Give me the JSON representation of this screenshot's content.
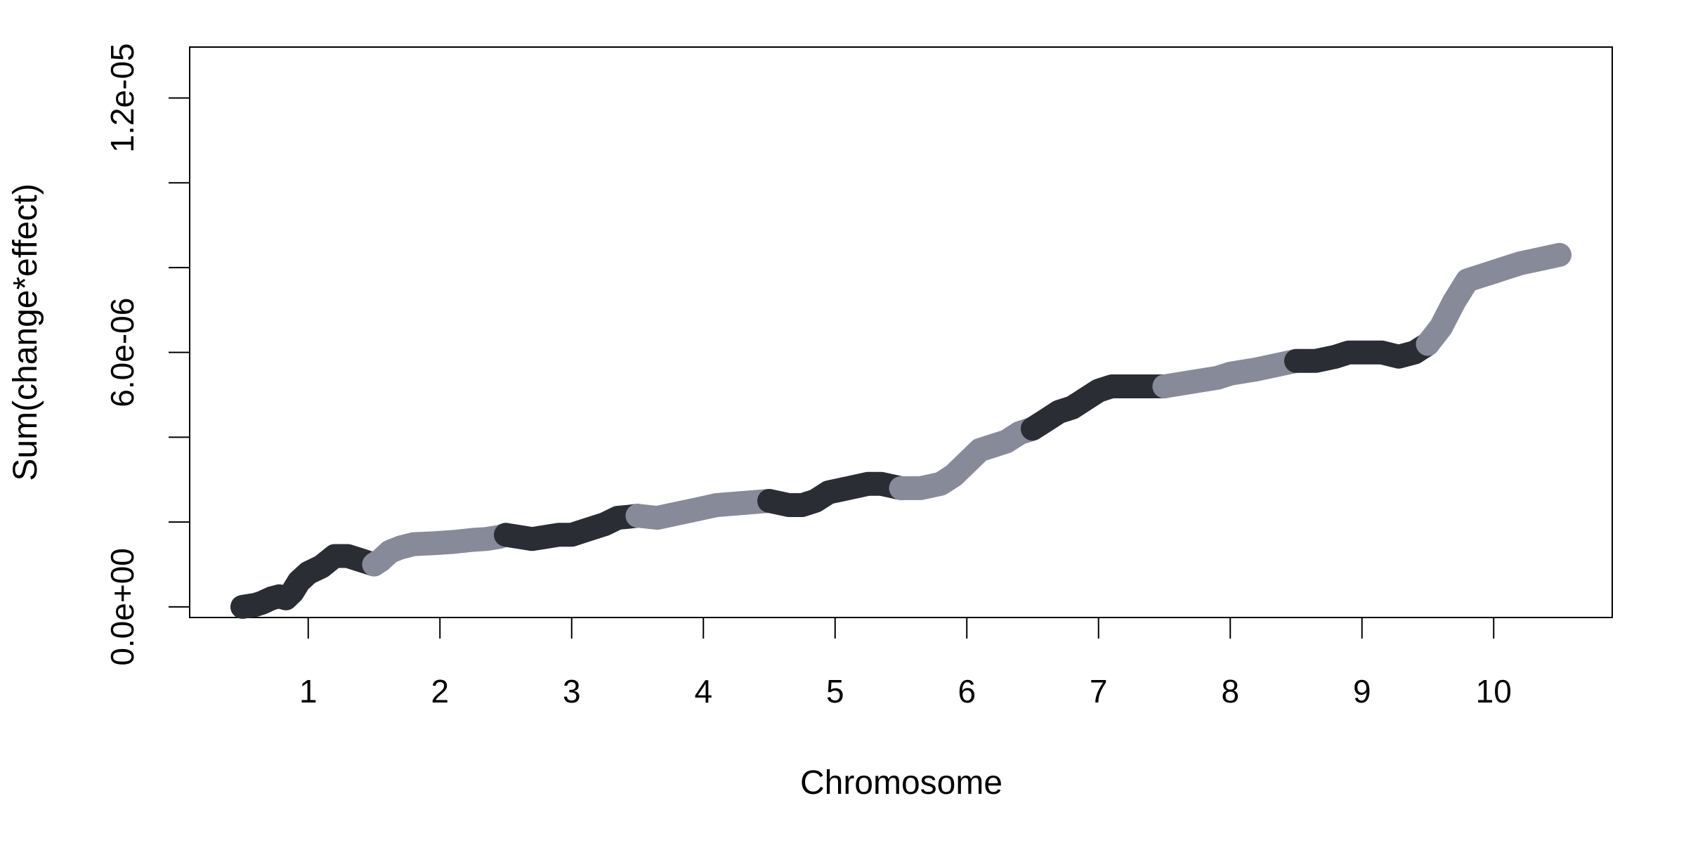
{
  "chart_data": {
    "type": "line",
    "title": "",
    "xlabel": "Chromosome",
    "ylabel": "Sum(change*effect)",
    "xlim": [
      0.1,
      10.9
    ],
    "ylim": [
      -2.5e-07,
      1.32e-05
    ],
    "x_ticks": [
      1,
      2,
      3,
      4,
      5,
      6,
      7,
      8,
      9,
      10
    ],
    "x_tick_labels": [
      "1",
      "2",
      "3",
      "4",
      "5",
      "6",
      "7",
      "8",
      "9",
      "10"
    ],
    "y_ticks": [
      0,
      1e-06,
      2e-06,
      3e-06,
      4e-06,
      5e-06,
      6e-06,
      7e-06,
      8e-06,
      9e-06,
      1e-05,
      1.1e-05,
      1.2e-05
    ],
    "y_tick_labels": [
      "0.0e+00",
      "",
      "",
      "",
      "",
      "",
      "6.0e-06",
      "",
      "",
      "",
      "",
      "",
      "1.2e-05"
    ],
    "grid": false,
    "legend": "none",
    "colors": {
      "dark": "#2a2d34",
      "light": "#878b99"
    },
    "series": [
      {
        "chromosome": "1",
        "color": "dark",
        "points": [
          [
            0.5,
            0.0
          ],
          [
            0.6,
            5e-08
          ],
          [
            0.65,
            1e-07
          ],
          [
            0.72,
            2e-07
          ],
          [
            0.78,
            2.5e-07
          ],
          [
            0.83,
            2e-07
          ],
          [
            0.88,
            3.5e-07
          ],
          [
            0.93,
            6e-07
          ],
          [
            1.0,
            8e-07
          ],
          [
            1.1,
            9.5e-07
          ],
          [
            1.2,
            1.2e-06
          ],
          [
            1.3,
            1.2e-06
          ],
          [
            1.4,
            1.1e-06
          ],
          [
            1.5,
            1e-06
          ]
        ]
      },
      {
        "chromosome": "2",
        "color": "light",
        "points": [
          [
            1.5,
            1e-06
          ],
          [
            1.55,
            1.1e-06
          ],
          [
            1.62,
            1.3e-06
          ],
          [
            1.7,
            1.4e-06
          ],
          [
            1.8,
            1.48e-06
          ],
          [
            1.95,
            1.5e-06
          ],
          [
            2.1,
            1.53e-06
          ],
          [
            2.25,
            1.58e-06
          ],
          [
            2.35,
            1.6e-06
          ],
          [
            2.45,
            1.65e-06
          ],
          [
            2.5,
            1.7e-06
          ]
        ]
      },
      {
        "chromosome": "3",
        "color": "dark",
        "points": [
          [
            2.5,
            1.7e-06
          ],
          [
            2.6,
            1.65e-06
          ],
          [
            2.7,
            1.6e-06
          ],
          [
            2.8,
            1.65e-06
          ],
          [
            2.9,
            1.7e-06
          ],
          [
            3.0,
            1.7e-06
          ],
          [
            3.1,
            1.8e-06
          ],
          [
            3.25,
            1.95e-06
          ],
          [
            3.35,
            2.1e-06
          ],
          [
            3.45,
            2.13e-06
          ],
          [
            3.5,
            2.15e-06
          ]
        ]
      },
      {
        "chromosome": "4",
        "color": "light",
        "points": [
          [
            3.5,
            2.15e-06
          ],
          [
            3.65,
            2.1e-06
          ],
          [
            3.8,
            2.2e-06
          ],
          [
            3.95,
            2.3e-06
          ],
          [
            4.1,
            2.4e-06
          ],
          [
            4.3,
            2.45e-06
          ],
          [
            4.5,
            2.5e-06
          ]
        ]
      },
      {
        "chromosome": "5",
        "color": "dark",
        "points": [
          [
            4.5,
            2.5e-06
          ],
          [
            4.65,
            2.4e-06
          ],
          [
            4.75,
            2.4e-06
          ],
          [
            4.85,
            2.5e-06
          ],
          [
            4.95,
            2.7e-06
          ],
          [
            5.1,
            2.8e-06
          ],
          [
            5.25,
            2.9e-06
          ],
          [
            5.35,
            2.9e-06
          ],
          [
            5.5,
            2.8e-06
          ]
        ]
      },
      {
        "chromosome": "6",
        "color": "light",
        "points": [
          [
            5.5,
            2.8e-06
          ],
          [
            5.65,
            2.8e-06
          ],
          [
            5.8,
            2.9e-06
          ],
          [
            5.9,
            3.1e-06
          ],
          [
            6.0,
            3.4e-06
          ],
          [
            6.1,
            3.7e-06
          ],
          [
            6.2,
            3.8e-06
          ],
          [
            6.3,
            3.9e-06
          ],
          [
            6.4,
            4.1e-06
          ],
          [
            6.5,
            4.2e-06
          ]
        ]
      },
      {
        "chromosome": "7",
        "color": "dark",
        "points": [
          [
            6.5,
            4.2e-06
          ],
          [
            6.6,
            4.4e-06
          ],
          [
            6.7,
            4.6e-06
          ],
          [
            6.8,
            4.7e-06
          ],
          [
            6.9,
            4.9e-06
          ],
          [
            7.0,
            5.1e-06
          ],
          [
            7.1,
            5.2e-06
          ],
          [
            7.3,
            5.2e-06
          ],
          [
            7.5,
            5.2e-06
          ]
        ]
      },
      {
        "chromosome": "8",
        "color": "light",
        "points": [
          [
            7.5,
            5.2e-06
          ],
          [
            7.7,
            5.3e-06
          ],
          [
            7.9,
            5.4e-06
          ],
          [
            8.0,
            5.5e-06
          ],
          [
            8.2,
            5.6e-06
          ],
          [
            8.35,
            5.7e-06
          ],
          [
            8.5,
            5.8e-06
          ]
        ]
      },
      {
        "chromosome": "9",
        "color": "dark",
        "points": [
          [
            8.5,
            5.8e-06
          ],
          [
            8.65,
            5.8e-06
          ],
          [
            8.8,
            5.9e-06
          ],
          [
            8.9,
            6e-06
          ],
          [
            9.0,
            6e-06
          ],
          [
            9.15,
            6e-06
          ],
          [
            9.28,
            5.9e-06
          ],
          [
            9.4,
            6e-06
          ],
          [
            9.5,
            6.2e-06
          ]
        ]
      },
      {
        "chromosome": "10",
        "color": "light",
        "points": [
          [
            9.5,
            6.2e-06
          ],
          [
            9.6,
            6.6e-06
          ],
          [
            9.7,
            7.2e-06
          ],
          [
            9.8,
            7.7e-06
          ],
          [
            9.9,
            7.8e-06
          ],
          [
            10.0,
            7.9e-06
          ],
          [
            10.1,
            8e-06
          ],
          [
            10.2,
            8.1e-06
          ],
          [
            10.35,
            8.2e-06
          ],
          [
            10.5,
            8.3e-06
          ]
        ]
      }
    ]
  }
}
